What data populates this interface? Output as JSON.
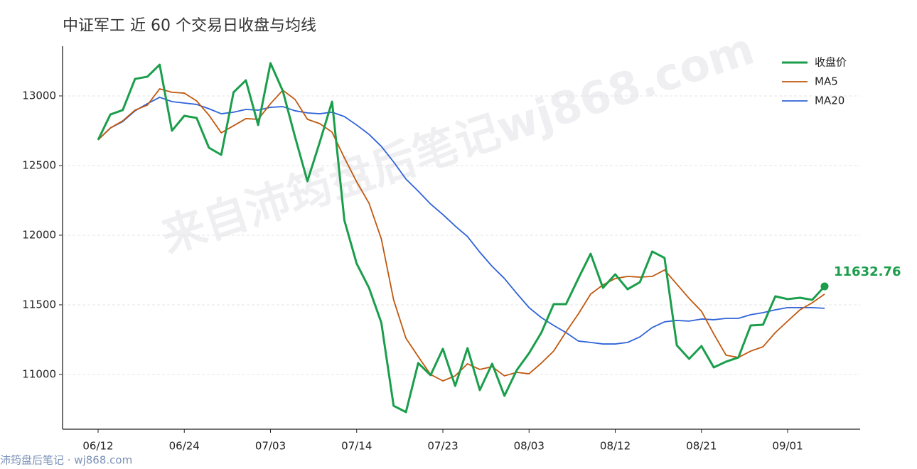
{
  "chart_data": {
    "type": "line",
    "title": "中证军工 近 60 个交易日收盘与均线",
    "categories": [
      "06/12",
      null,
      null,
      null,
      null,
      null,
      null,
      "06/24",
      null,
      null,
      null,
      null,
      null,
      null,
      "07/03",
      null,
      null,
      null,
      null,
      null,
      null,
      "07/14",
      null,
      null,
      null,
      null,
      null,
      null,
      "07/23",
      null,
      null,
      null,
      null,
      null,
      null,
      "08/03",
      null,
      null,
      null,
      null,
      null,
      null,
      "08/12",
      null,
      null,
      null,
      null,
      null,
      null,
      "08/21",
      null,
      null,
      null,
      null,
      null,
      null,
      "09/01",
      null,
      null,
      null
    ],
    "series": [
      {
        "name": "收盘价",
        "color": "#1a9e4b",
        "values": [
          12684,
          12867,
          12898,
          13122,
          13138,
          13224,
          12750,
          12857,
          12842,
          12628,
          12577,
          13026,
          13112,
          12791,
          13235,
          13036,
          12704,
          12388,
          12668,
          12959,
          12107,
          11796,
          11622,
          11372,
          10775,
          10730,
          11082,
          10995,
          11184,
          10918,
          11189,
          10888,
          11077,
          10847,
          11031,
          11153,
          11301,
          11505,
          11505,
          11689,
          11867,
          11622,
          11719,
          11612,
          11663,
          11883,
          11837,
          11209,
          11112,
          11204,
          11051,
          11092,
          11122,
          11352,
          11357,
          11561,
          11541,
          11551,
          11536,
          11632.76
        ]
      },
      {
        "name": "MA5",
        "color": "#c0580f",
        "values": [
          12684,
          12770,
          12821,
          12898,
          12934,
          13051,
          13026,
          13020,
          12964,
          12862,
          12735,
          12786,
          12837,
          12832,
          12944,
          13041,
          12974,
          12832,
          12801,
          12740,
          12556,
          12383,
          12230,
          11974,
          11536,
          11260,
          11128,
          11000,
          10954,
          10990,
          11077,
          11036,
          11056,
          10990,
          11015,
          11005,
          11082,
          11168,
          11306,
          11434,
          11577,
          11643,
          11689,
          11704,
          11699,
          11704,
          11750,
          11648,
          11546,
          11454,
          11291,
          11138,
          11122,
          11168,
          11199,
          11301,
          11383,
          11464,
          11515,
          11577
        ]
      },
      {
        "name": "MA20",
        "color": "#2f63d8",
        "values": [
          12684,
          12770,
          12816,
          12893,
          12944,
          12990,
          12959,
          12949,
          12939,
          12908,
          12872,
          12883,
          12903,
          12898,
          12918,
          12923,
          12893,
          12878,
          12872,
          12883,
          12852,
          12791,
          12724,
          12638,
          12526,
          12403,
          12316,
          12224,
          12148,
          12066,
          11990,
          11878,
          11776,
          11689,
          11582,
          11480,
          11408,
          11352,
          11301,
          11240,
          11230,
          11219,
          11219,
          11230,
          11270,
          11337,
          11378,
          11388,
          11383,
          11398,
          11393,
          11403,
          11403,
          11429,
          11444,
          11464,
          11480,
          11480,
          11480,
          11475
        ]
      }
    ],
    "ylim": [
      10607,
      13357
    ],
    "yticks": [
      11000,
      11500,
      12000,
      12500,
      13000
    ],
    "grid": true,
    "legend": "upper-right"
  },
  "watermark": "来自沛筠盘后笔记wj868.com",
  "footer": "沛筠盘后笔记 · wj868.com"
}
